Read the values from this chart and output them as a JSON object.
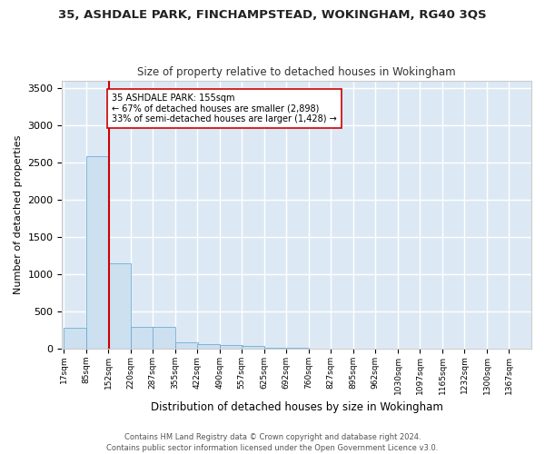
{
  "title": "35, ASHDALE PARK, FINCHAMPSTEAD, WOKINGHAM, RG40 3QS",
  "subtitle": "Size of property relative to detached houses in Wokingham",
  "xlabel": "Distribution of detached houses by size in Wokingham",
  "ylabel": "Number of detached properties",
  "bar_color": "#cce0f0",
  "bar_edge_color": "#5ba3d0",
  "bg_color": "#dce9f5",
  "grid_color": "#ffffff",
  "bin_edges": [
    17,
    85,
    152,
    220,
    287,
    355,
    422,
    490,
    557,
    625,
    692,
    760,
    827,
    895,
    962,
    1030,
    1097,
    1165,
    1232,
    1300,
    1367
  ],
  "bin_labels": [
    "17sqm",
    "85sqm",
    "152sqm",
    "220sqm",
    "287sqm",
    "355sqm",
    "422sqm",
    "490sqm",
    "557sqm",
    "625sqm",
    "692sqm",
    "760sqm",
    "827sqm",
    "895sqm",
    "962sqm",
    "1030sqm",
    "1097sqm",
    "1165sqm",
    "1232sqm",
    "1300sqm",
    "1367sqm"
  ],
  "bar_heights": [
    280,
    2580,
    1140,
    290,
    290,
    90,
    60,
    45,
    30,
    5,
    5,
    3,
    2,
    1,
    1,
    0,
    0,
    0,
    0,
    0
  ],
  "property_size": 155,
  "vline_color": "#cc0000",
  "annotation_text": "35 ASHDALE PARK: 155sqm\n← 67% of detached houses are smaller (2,898)\n33% of semi-detached houses are larger (1,428) →",
  "annotation_box_color": "#ffffff",
  "annotation_box_edge": "#cc0000",
  "ylim": [
    0,
    3600
  ],
  "yticks": [
    0,
    500,
    1000,
    1500,
    2000,
    2500,
    3000,
    3500
  ],
  "footer_line1": "Contains HM Land Registry data © Crown copyright and database right 2024.",
  "footer_line2": "Contains public sector information licensed under the Open Government Licence v3.0."
}
